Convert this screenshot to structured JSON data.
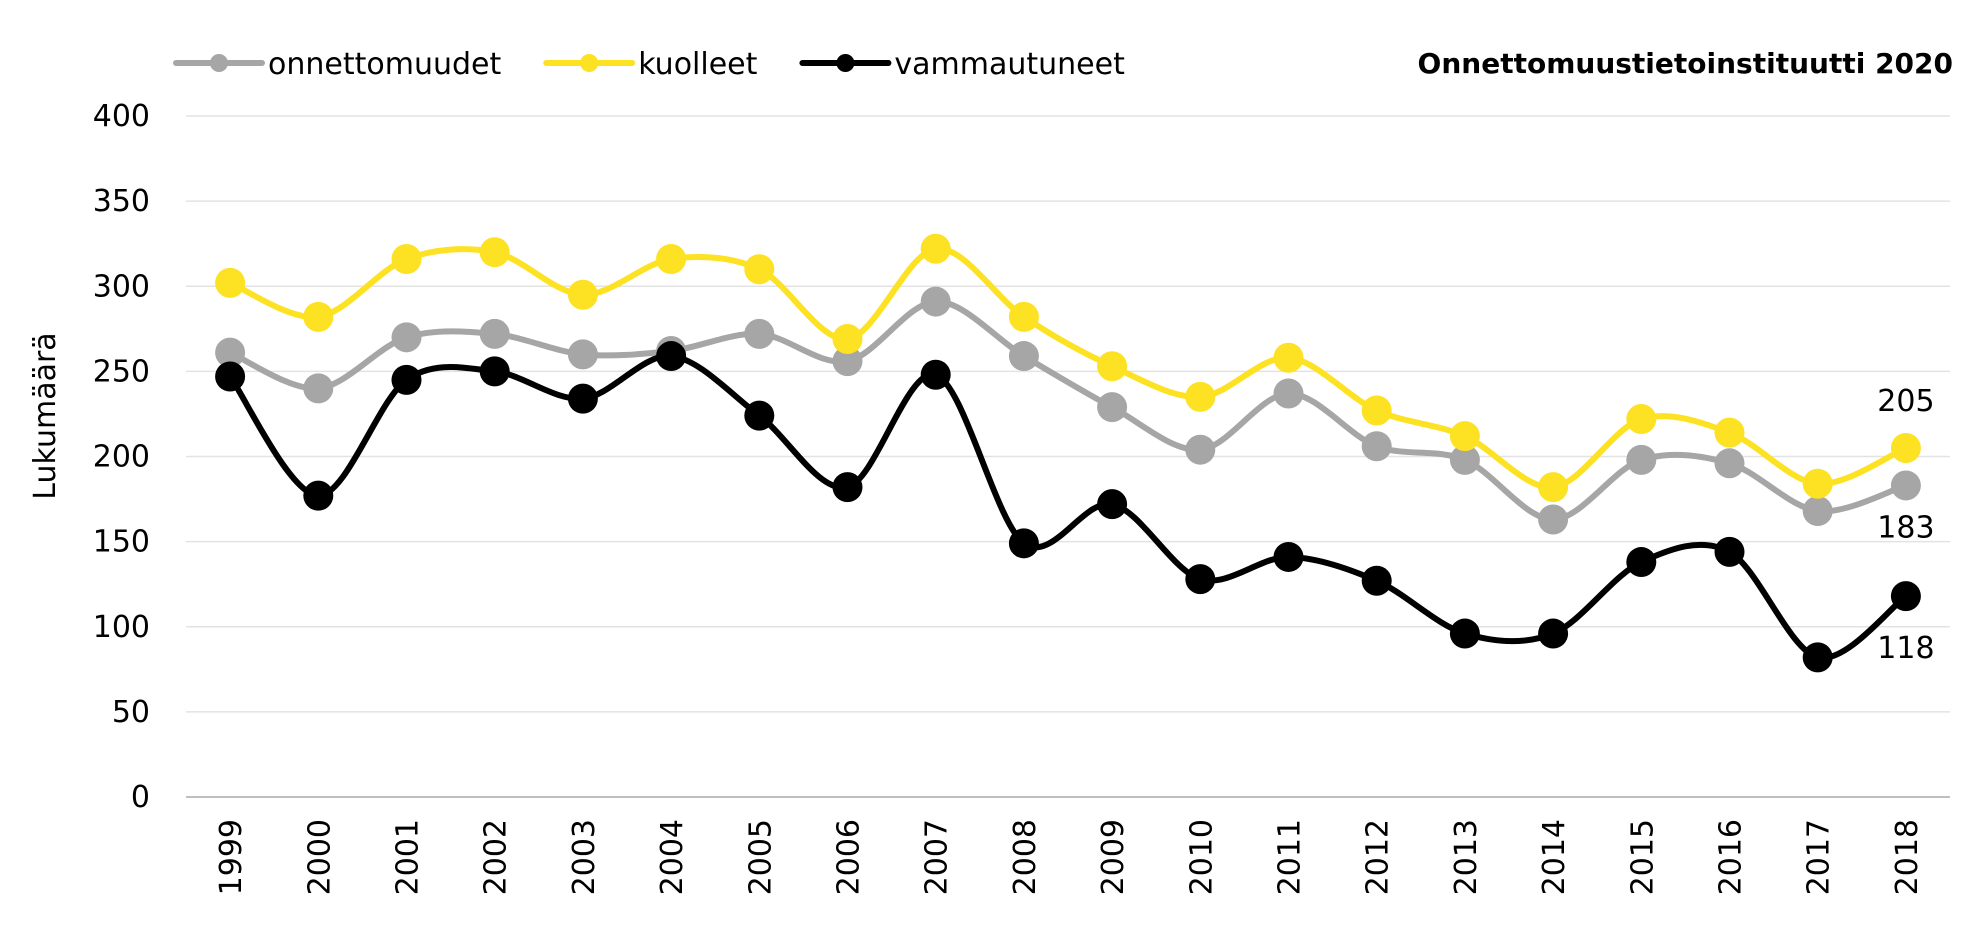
{
  "chart_data": {
    "type": "line",
    "source": "Onnettomuustietoinstituutti 2020",
    "ylabel": "Lukumäärä",
    "xlabel": "",
    "ylim": [
      0,
      400
    ],
    "yticks": [
      0,
      50,
      100,
      150,
      200,
      250,
      300,
      350,
      400
    ],
    "grid": true,
    "legend_position": "top-left",
    "smoothed": true,
    "categories": [
      "1999",
      "2000",
      "2001",
      "2002",
      "2003",
      "2004",
      "2005",
      "2006",
      "2007",
      "2008",
      "2009",
      "2010",
      "2011",
      "2012",
      "2013",
      "2014",
      "2015",
      "2016",
      "2017",
      "2018"
    ],
    "series": [
      {
        "name": "onnettomuudet",
        "color": "#a6a6a6",
        "values": [
          261,
          240,
          270,
          272,
          260,
          262,
          272,
          256,
          291,
          259,
          229,
          204,
          237,
          206,
          198,
          163,
          198,
          196,
          168,
          183
        ],
        "end_label": "183"
      },
      {
        "name": "kuolleet",
        "color": "#fde123",
        "values": [
          302,
          282,
          316,
          320,
          295,
          316,
          310,
          269,
          322,
          282,
          253,
          235,
          258,
          227,
          212,
          182,
          222,
          214,
          184,
          205
        ],
        "end_label": "205"
      },
      {
        "name": "vammautuneet",
        "color": "#000000",
        "values": [
          247,
          177,
          245,
          250,
          234,
          259,
          224,
          182,
          248,
          149,
          172,
          128,
          141,
          127,
          96,
          96,
          138,
          144,
          82,
          118
        ],
        "end_label": "118"
      }
    ]
  }
}
